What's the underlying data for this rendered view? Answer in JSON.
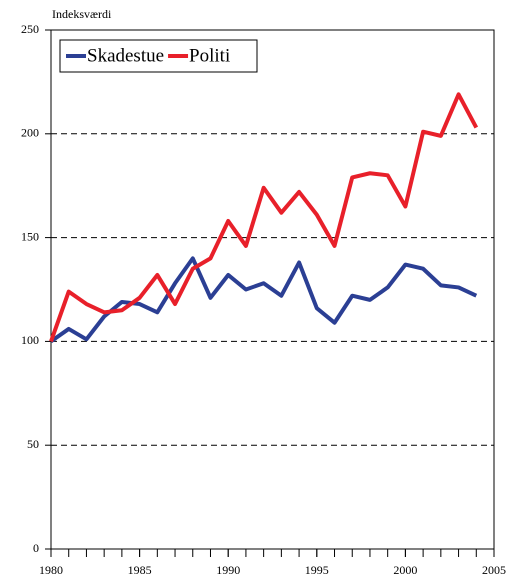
{
  "chart_data": {
    "type": "line",
    "y_label": "Indeksværdi",
    "x": [
      1980,
      1981,
      1982,
      1983,
      1984,
      1985,
      1986,
      1987,
      1988,
      1989,
      1990,
      1991,
      1992,
      1993,
      1994,
      1995,
      1996,
      1997,
      1998,
      1999,
      2000,
      2001,
      2002,
      2003,
      2004
    ],
    "series": [
      {
        "name": "Skadestue",
        "color": "#2b3f94",
        "values": [
          100,
          106,
          101,
          112,
          119,
          118,
          114,
          128,
          140,
          121,
          132,
          125,
          128,
          122,
          138,
          116,
          109,
          122,
          120,
          126,
          137,
          135,
          127,
          126,
          122
        ]
      },
      {
        "name": "Politi",
        "color": "#e8202a",
        "values": [
          100,
          124,
          118,
          114,
          115,
          121,
          132,
          118,
          135,
          140,
          158,
          146,
          174,
          162,
          172,
          161,
          146,
          179,
          181,
          180,
          165,
          201,
          199,
          219,
          203
        ]
      }
    ],
    "xlim": [
      1980,
      2005
    ],
    "xticks": [
      1980,
      1985,
      1990,
      1995,
      2000,
      2005
    ],
    "ylim": [
      0,
      250
    ],
    "yticks": [
      0,
      50,
      100,
      150,
      200,
      250
    ],
    "grid": true,
    "legend": "top-left"
  }
}
